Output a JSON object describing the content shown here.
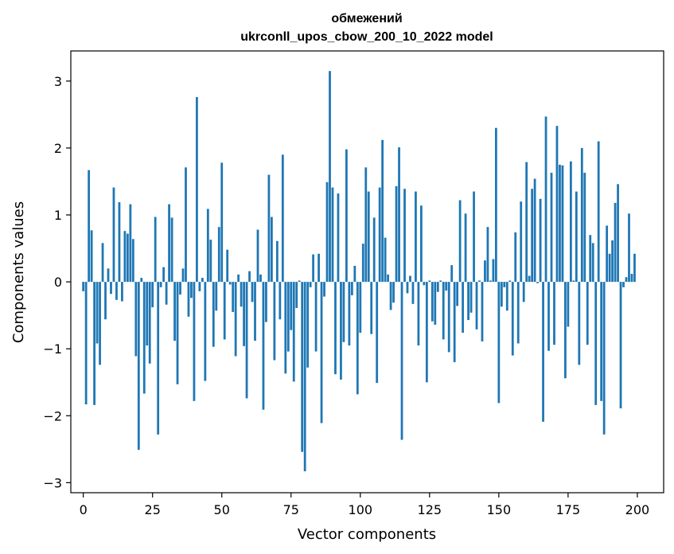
{
  "chart_data": {
    "type": "bar",
    "title_line1": "обмежений",
    "title_line2": "ukrconll_upos_cbow_200_10_2022 model",
    "xlabel": "Vector components",
    "ylabel": "Components values",
    "xlim": [
      -4.5,
      209.5
    ],
    "ylim": [
      -3.15,
      3.45
    ],
    "xticks": [
      0,
      25,
      50,
      75,
      100,
      125,
      150,
      175,
      200
    ],
    "xtick_labels": [
      "0",
      "25",
      "50",
      "75",
      "100",
      "125",
      "150",
      "175",
      "200"
    ],
    "yticks": [
      -3,
      -2,
      -1,
      0,
      1,
      2,
      3
    ],
    "ytick_labels": [
      "−3",
      "−2",
      "−1",
      "0",
      "1",
      "2",
      "3"
    ],
    "grid": false,
    "bar_color": "#1f77b4",
    "x": [
      0,
      1,
      2,
      3,
      4,
      5,
      6,
      7,
      8,
      9,
      10,
      11,
      12,
      13,
      14,
      15,
      16,
      17,
      18,
      19,
      20,
      21,
      22,
      23,
      24,
      25,
      26,
      27,
      28,
      29,
      30,
      31,
      32,
      33,
      34,
      35,
      36,
      37,
      38,
      39,
      40,
      41,
      42,
      43,
      44,
      45,
      46,
      47,
      48,
      49,
      50,
      51,
      52,
      53,
      54,
      55,
      56,
      57,
      58,
      59,
      60,
      61,
      62,
      63,
      64,
      65,
      66,
      67,
      68,
      69,
      70,
      71,
      72,
      73,
      74,
      75,
      76,
      77,
      78,
      79,
      80,
      81,
      82,
      83,
      84,
      85,
      86,
      87,
      88,
      89,
      90,
      91,
      92,
      93,
      94,
      95,
      96,
      97,
      98,
      99,
      100,
      101,
      102,
      103,
      104,
      105,
      106,
      107,
      108,
      109,
      110,
      111,
      112,
      113,
      114,
      115,
      116,
      117,
      118,
      119,
      120,
      121,
      122,
      123,
      124,
      125,
      126,
      127,
      128,
      129,
      130,
      131,
      132,
      133,
      134,
      135,
      136,
      137,
      138,
      139,
      140,
      141,
      142,
      143,
      144,
      145,
      146,
      147,
      148,
      149,
      150,
      151,
      152,
      153,
      154,
      155,
      156,
      157,
      158,
      159,
      160,
      161,
      162,
      163,
      164,
      165,
      166,
      167,
      168,
      169,
      170,
      171,
      172,
      173,
      174,
      175,
      176,
      177,
      178,
      179,
      180,
      181,
      182,
      183,
      184,
      185,
      186,
      187,
      188,
      189,
      190,
      191,
      192,
      193,
      194,
      195,
      196,
      197,
      198,
      199
    ],
    "values": [
      -0.14,
      -1.83,
      1.67,
      0.77,
      -1.84,
      -0.92,
      -1.24,
      0.58,
      -0.56,
      0.2,
      -0.18,
      1.41,
      -0.27,
      1.19,
      -0.29,
      0.76,
      0.72,
      1.16,
      0.64,
      -1.11,
      -2.51,
      0.06,
      -1.67,
      -0.95,
      -1.22,
      -0.38,
      0.97,
      -2.28,
      -0.08,
      0.22,
      -0.34,
      1.16,
      0.96,
      -0.88,
      -1.53,
      -0.19,
      0.2,
      1.71,
      -0.52,
      -0.24,
      -1.78,
      2.76,
      -0.14,
      0.06,
      -1.48,
      1.09,
      0.63,
      -0.97,
      -0.43,
      0.82,
      1.78,
      -0.86,
      0.48,
      -0.04,
      -0.45,
      -1.11,
      0.11,
      -0.37,
      -0.96,
      -1.74,
      0.16,
      -0.3,
      -0.88,
      0.78,
      0.11,
      -1.91,
      -0.6,
      1.6,
      0.97,
      -1.17,
      0.61,
      -0.56,
      1.9,
      -1.37,
      -1.04,
      -0.72,
      -1.49,
      -0.39,
      0.02,
      -2.54,
      -2.83,
      -1.28,
      -0.08,
      0.41,
      -1.04,
      0.42,
      -2.11,
      -0.22,
      1.49,
      3.15,
      1.41,
      -1.38,
      1.32,
      -1.46,
      -0.9,
      1.98,
      -0.95,
      -0.2,
      0.24,
      -1.68,
      -0.76,
      0.57,
      1.71,
      1.35,
      -0.78,
      0.96,
      -1.51,
      1.41,
      2.12,
      0.66,
      0.11,
      -0.42,
      -0.31,
      1.43,
      2.01,
      -2.36,
      1.39,
      -0.17,
      0.09,
      -0.33,
      1.35,
      -0.95,
      1.14,
      -0.05,
      -1.5,
      0.02,
      -0.59,
      -0.64,
      -0.15,
      0.02,
      -0.86,
      -0.13,
      -1.05,
      0.25,
      -1.2,
      -0.36,
      1.22,
      -0.76,
      1.02,
      -0.57,
      -0.46,
      1.35,
      -0.71,
      0.02,
      -0.89,
      0.32,
      0.82,
      0.02,
      0.34,
      2.3,
      -1.81,
      -0.37,
      -0.08,
      -0.43,
      0.02,
      -1.1,
      0.74,
      -0.92,
      1.2,
      -0.3,
      1.79,
      0.09,
      1.39,
      1.54,
      -0.02,
      1.24,
      -2.09,
      2.47,
      -1.03,
      1.63,
      -0.94,
      2.33,
      1.75,
      1.74,
      -1.44,
      -0.67,
      1.8,
      0.02,
      1.35,
      -1.24,
      2.0,
      1.63,
      -0.94,
      0.7,
      0.58,
      -1.84,
      2.1,
      -1.78,
      -2.28,
      0.84,
      0.42,
      0.62,
      1.18,
      1.46,
      -1.89,
      -0.08,
      0.07,
      1.02,
      0.12,
      0.42
    ]
  }
}
